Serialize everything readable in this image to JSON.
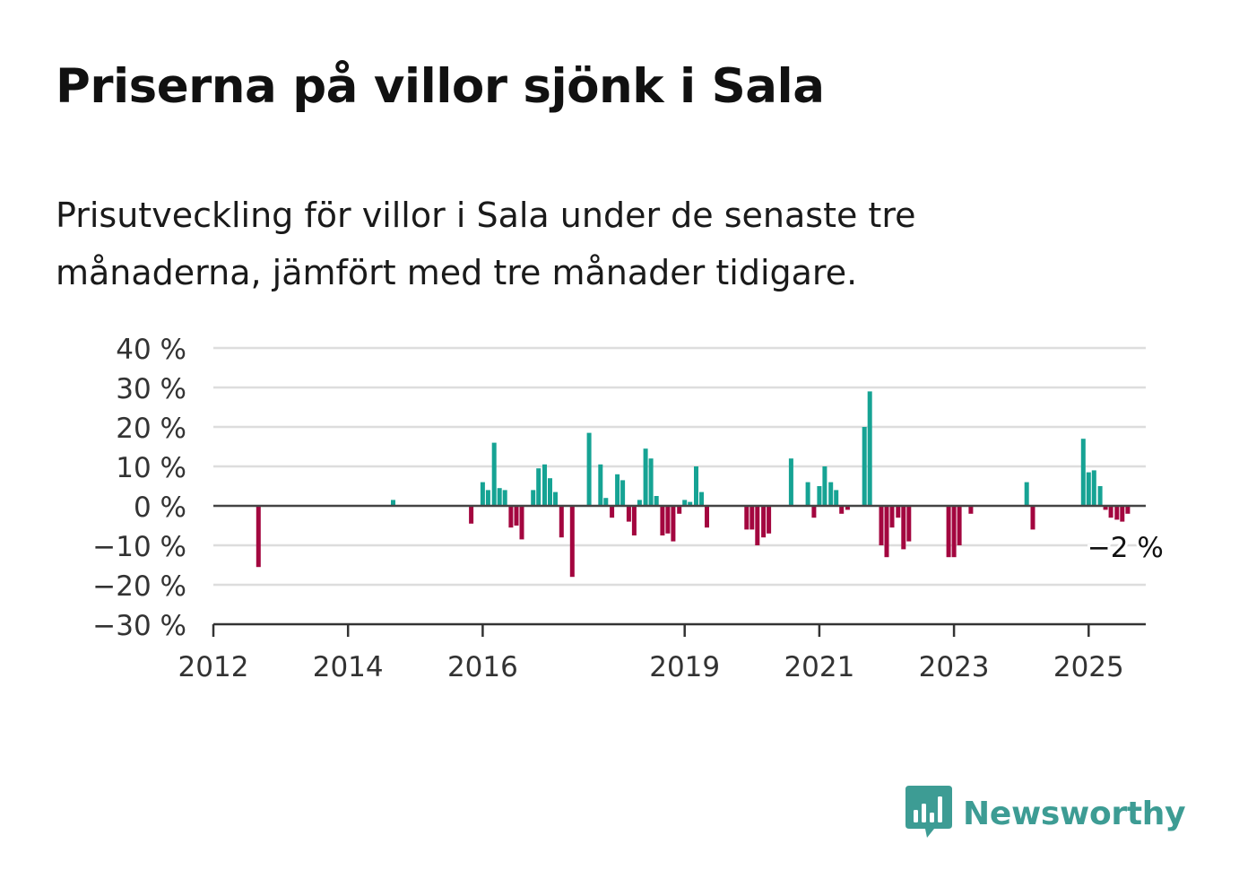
{
  "header": {
    "title": "Priserna på villor sjönk i Sala",
    "subtitle": "Prisutveckling för villor i Sala under de senaste tre månaderna, jämfört med tre månader tidigare."
  },
  "brand": {
    "name": "Newsworthy",
    "logo_icon": "bar-chart-speech-bubble-icon",
    "color": "#3d9c94"
  },
  "chart_data": {
    "type": "bar",
    "yticks": [
      "40 %",
      "30 %",
      "20 %",
      "10 %",
      "0 %",
      "−10 %",
      "−20 %",
      "−30 %"
    ],
    "ylim": [
      -30,
      40
    ],
    "xticks": [
      {
        "label": "2012",
        "year": 2012.0
      },
      {
        "label": "2014",
        "year": 2014.0
      },
      {
        "label": "2016",
        "year": 2016.0
      },
      {
        "label": "2019",
        "year": 2019.0
      },
      {
        "label": "2021",
        "year": 2021.0
      },
      {
        "label": "2023",
        "year": 2023.0
      },
      {
        "label": "2025",
        "year": 2025.0
      }
    ],
    "xlim": [
      2012.0,
      2025.83
    ],
    "colors": {
      "positive": "#16a394",
      "negative": "#a3063f"
    },
    "annotation": {
      "text": "−2 %"
    },
    "series": [
      {
        "points": [
          [
            2012.67,
            -15.5
          ],
          [
            2014.67,
            1.5
          ],
          [
            2015.83,
            -4.5
          ],
          [
            2016.0,
            6.0
          ],
          [
            2016.08,
            4.0
          ],
          [
            2016.17,
            16.0
          ],
          [
            2016.25,
            4.5
          ],
          [
            2016.33,
            4.0
          ],
          [
            2016.42,
            -5.5
          ],
          [
            2016.5,
            -5.0
          ],
          [
            2016.58,
            -8.5
          ],
          [
            2016.75,
            4.0
          ],
          [
            2016.83,
            9.5
          ],
          [
            2016.92,
            10.5
          ],
          [
            2017.0,
            7.0
          ],
          [
            2017.08,
            3.5
          ],
          [
            2017.17,
            -8.0
          ],
          [
            2017.33,
            -18.0
          ],
          [
            2017.58,
            18.5
          ],
          [
            2017.75,
            10.5
          ],
          [
            2017.83,
            2.0
          ],
          [
            2017.92,
            -3.0
          ],
          [
            2018.0,
            8.0
          ],
          [
            2018.08,
            6.5
          ],
          [
            2018.17,
            -4.0
          ],
          [
            2018.25,
            -7.5
          ],
          [
            2018.33,
            1.5
          ],
          [
            2018.42,
            14.5
          ],
          [
            2018.5,
            12.0
          ],
          [
            2018.58,
            2.5
          ],
          [
            2018.67,
            -7.5
          ],
          [
            2018.75,
            -7.0
          ],
          [
            2018.83,
            -9.0
          ],
          [
            2018.92,
            -2.0
          ],
          [
            2019.0,
            1.5
          ],
          [
            2019.08,
            1.0
          ],
          [
            2019.17,
            10.0
          ],
          [
            2019.25,
            3.5
          ],
          [
            2019.33,
            -5.5
          ],
          [
            2019.92,
            -6.0
          ],
          [
            2020.0,
            -6.0
          ],
          [
            2020.08,
            -10.0
          ],
          [
            2020.17,
            -8.0
          ],
          [
            2020.25,
            -7.0
          ],
          [
            2020.58,
            12.0
          ],
          [
            2020.83,
            6.0
          ],
          [
            2020.92,
            -3.0
          ],
          [
            2021.0,
            5.0
          ],
          [
            2021.08,
            10.0
          ],
          [
            2021.17,
            6.0
          ],
          [
            2021.25,
            4.0
          ],
          [
            2021.33,
            -2.0
          ],
          [
            2021.42,
            -1.0
          ],
          [
            2021.67,
            20.0
          ],
          [
            2021.75,
            29.0
          ],
          [
            2021.92,
            -10.0
          ],
          [
            2022.0,
            -13.0
          ],
          [
            2022.08,
            -5.5
          ],
          [
            2022.17,
            -3.0
          ],
          [
            2022.25,
            -11.0
          ],
          [
            2022.33,
            -9.0
          ],
          [
            2022.92,
            -13.0
          ],
          [
            2023.0,
            -13.0
          ],
          [
            2023.08,
            -10.0
          ],
          [
            2023.25,
            -2.0
          ],
          [
            2024.08,
            6.0
          ],
          [
            2024.17,
            -6.0
          ],
          [
            2024.92,
            17.0
          ],
          [
            2025.0,
            8.5
          ],
          [
            2025.08,
            9.0
          ],
          [
            2025.17,
            5.0
          ],
          [
            2025.25,
            -1.0
          ],
          [
            2025.33,
            -3.0
          ],
          [
            2025.42,
            -3.5
          ],
          [
            2025.5,
            -4.0
          ],
          [
            2025.58,
            -2.0
          ]
        ]
      }
    ]
  }
}
